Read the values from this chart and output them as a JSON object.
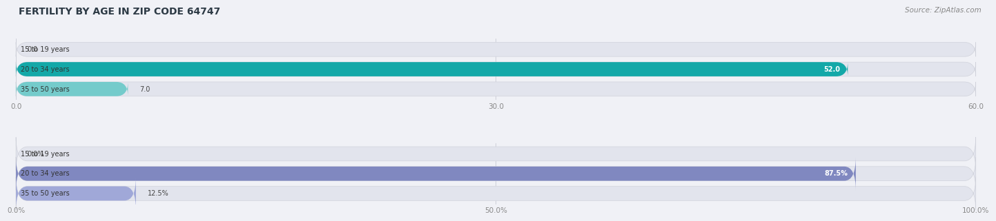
{
  "title": "FERTILITY BY AGE IN ZIP CODE 64747",
  "source": "Source: ZipAtlas.com",
  "top_chart": {
    "categories": [
      "15 to 19 years",
      "20 to 34 years",
      "35 to 50 years"
    ],
    "values": [
      0.0,
      52.0,
      7.0
    ],
    "xlim": [
      0,
      60
    ],
    "xticks": [
      0.0,
      30.0,
      60.0
    ],
    "xtick_labels": [
      "0.0",
      "30.0",
      "60.0"
    ],
    "bar_colors": [
      "#74cbcb",
      "#13a8a8",
      "#74cbcb"
    ],
    "value_labels": [
      "0.0",
      "52.0",
      "7.0"
    ],
    "value_inside": [
      false,
      true,
      false
    ]
  },
  "bottom_chart": {
    "categories": [
      "15 to 19 years",
      "20 to 34 years",
      "35 to 50 years"
    ],
    "values": [
      0.0,
      87.5,
      12.5
    ],
    "xlim": [
      0,
      100
    ],
    "xticks": [
      0.0,
      50.0,
      100.0
    ],
    "xtick_labels": [
      "0.0%",
      "50.0%",
      "100.0%"
    ],
    "bar_colors": [
      "#a0a8d8",
      "#8088c0",
      "#a0a8d8"
    ],
    "value_labels": [
      "0.0%",
      "87.5%",
      "12.5%"
    ],
    "value_inside": [
      false,
      true,
      false
    ]
  },
  "bg_color": "#f0f1f6",
  "bar_bg_color": "#e2e4ed",
  "bar_height": 0.72,
  "label_fontsize": 7.0,
  "tick_fontsize": 7.5,
  "title_fontsize": 10,
  "source_fontsize": 7.5,
  "label_color": "#444444",
  "tick_color": "#888888"
}
